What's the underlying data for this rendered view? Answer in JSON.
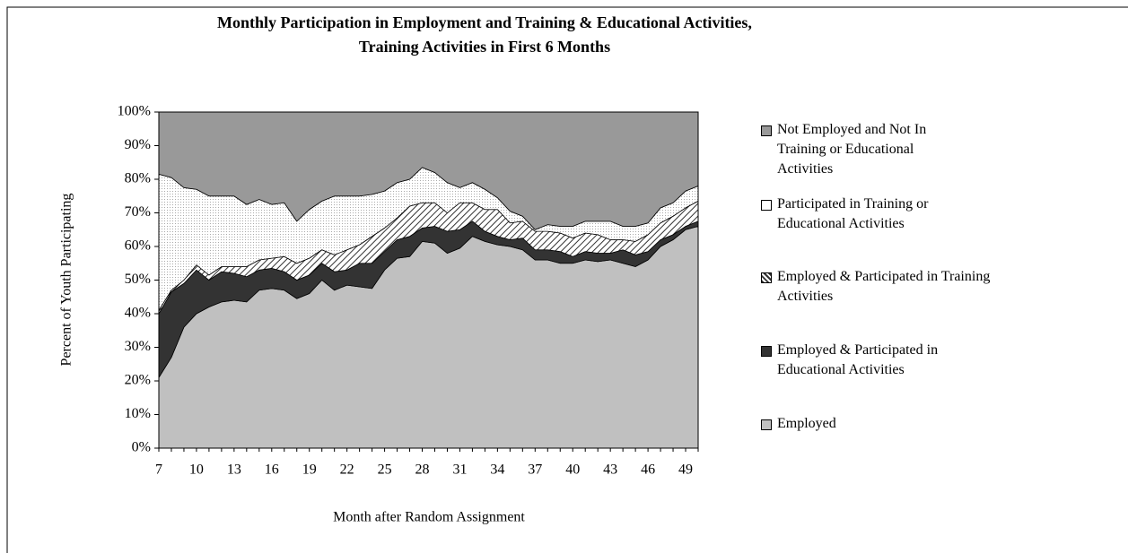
{
  "chart_data": {
    "type": "stacked-area",
    "title": [
      "Monthly Participation in Employment and Training & Educational Activities,",
      "Training Activities in First 6 Months"
    ],
    "x_label": "Month after Random Assignment",
    "y_label": "Percent of Youth Participating",
    "categories": [
      "7",
      null,
      null,
      "10",
      null,
      null,
      "13",
      null,
      null,
      "16",
      null,
      null,
      "19",
      null,
      null,
      "22",
      null,
      null,
      "25",
      null,
      null,
      "28",
      null,
      null,
      "31",
      null,
      null,
      "34",
      null,
      null,
      "37",
      null,
      null,
      "40",
      null,
      null,
      "43",
      null,
      null,
      "46",
      null,
      null,
      "49",
      null
    ],
    "ylim": [
      0,
      100
    ],
    "yticks": [
      {
        "value": 0,
        "label": "0%"
      },
      {
        "value": 10,
        "label": "10%"
      },
      {
        "value": 20,
        "label": "20%"
      },
      {
        "value": 30,
        "label": "30%"
      },
      {
        "value": 40,
        "label": "40%"
      },
      {
        "value": 50,
        "label": "50%"
      },
      {
        "value": 60,
        "label": "60%"
      },
      {
        "value": 70,
        "label": "70%"
      },
      {
        "value": 80,
        "label": "80%"
      },
      {
        "value": 90,
        "label": "90%"
      },
      {
        "value": 100,
        "label": "100%"
      }
    ],
    "legend": "right",
    "series": [
      {
        "name": "Employed",
        "color": "#c0c0c0",
        "pattern": "solid",
        "values": [
          21,
          27,
          36,
          40,
          42,
          43.5,
          44,
          43.5,
          47,
          47.5,
          47,
          44.5,
          46,
          50,
          47,
          48.5,
          48,
          47.5,
          53,
          56.5,
          57,
          61.5,
          61,
          58,
          59.5,
          63,
          61.5,
          60.5,
          60,
          59,
          56,
          56,
          55,
          55,
          56,
          55.5,
          56,
          55,
          54,
          56,
          60,
          62,
          65,
          66
        ]
      },
      {
        "name": "Employed & Participated in Educational Activities",
        "color": "#333333",
        "pattern": "solid",
        "values": [
          19,
          19.5,
          13,
          13,
          8,
          9,
          8,
          7.5,
          6,
          6,
          5.5,
          5.5,
          5.5,
          5,
          5.5,
          4.5,
          7,
          7.5,
          5.5,
          5.5,
          6,
          4,
          5,
          6.5,
          5.5,
          4.5,
          3,
          2.5,
          2,
          3.5,
          3,
          3,
          3.5,
          2,
          2.5,
          2.5,
          2,
          4,
          3.5,
          2.5,
          2,
          1.5,
          1,
          1.5
        ]
      },
      {
        "name": "Employed & Participated in Training Activities",
        "color": "#ffffff",
        "pattern": "hatch",
        "values": [
          1,
          0.5,
          1,
          1.5,
          1.5,
          1.5,
          2,
          3,
          3,
          3,
          4.5,
          5,
          5,
          4,
          5,
          6,
          5.5,
          8,
          7,
          6.5,
          9,
          7.5,
          7,
          5.5,
          8,
          5.5,
          6.5,
          8,
          5,
          5,
          5.5,
          5.5,
          5.5,
          5.5,
          5.5,
          5.5,
          4,
          3,
          4,
          5,
          5,
          5.5,
          5.5,
          6
        ]
      },
      {
        "name": "Participated in Training or Educational Activities",
        "color": "#ffffff",
        "pattern": "dots",
        "values": [
          40.5,
          33.5,
          27.5,
          22.5,
          23.5,
          21,
          21,
          18.5,
          18,
          16,
          16,
          12.5,
          14.5,
          14.5,
          17.5,
          16,
          14.5,
          12.5,
          11,
          10.5,
          8,
          10.5,
          9,
          9,
          4.5,
          6,
          6,
          3.5,
          3.5,
          1.5,
          0.5,
          2,
          2,
          3.5,
          3.5,
          4,
          5.5,
          4,
          4.5,
          3.5,
          4.5,
          4,
          5,
          4.5
        ]
      },
      {
        "name": "Not Employed and Not In Training or Educational Activities",
        "color": "#999999",
        "pattern": "solid",
        "values": [
          18.5,
          19.5,
          22.5,
          23,
          25,
          25,
          25,
          27.5,
          26,
          27.5,
          27,
          32.5,
          29,
          26.5,
          25,
          25,
          25,
          24.5,
          23.5,
          21,
          20,
          16.5,
          18,
          21,
          22.5,
          21,
          23,
          25.5,
          29.5,
          31,
          35,
          33.5,
          34,
          34,
          32.5,
          32.5,
          32.5,
          34,
          34,
          33,
          28.5,
          27,
          23.5,
          22
        ]
      }
    ]
  }
}
